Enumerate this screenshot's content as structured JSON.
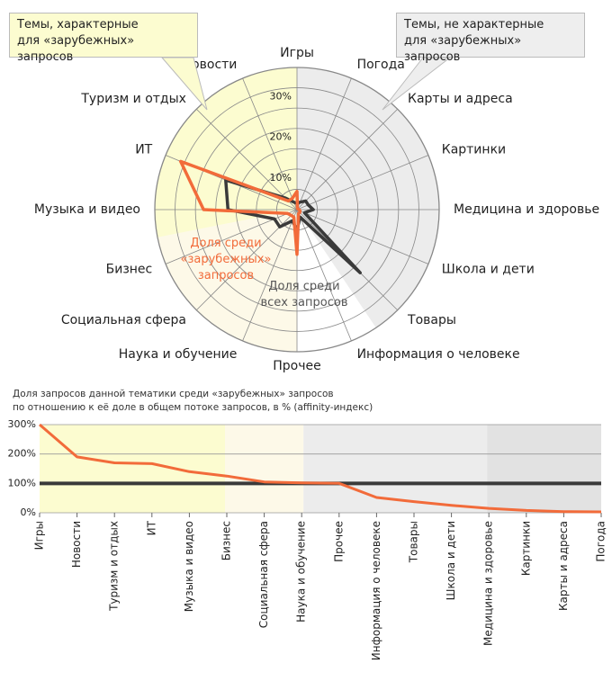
{
  "chart_data": [
    {
      "type": "radar",
      "categories": [
        "Игры",
        "Погода",
        "Карты и адреса",
        "Картинки",
        "Медицина и здоровье",
        "Школа и дети",
        "Товары",
        "Информация о человеке",
        "Прочее",
        "Наука и обучение",
        "Социальная сфера",
        "Бизнес",
        "Музыка и видео",
        "ИТ",
        "Туризм и отдых",
        "Новости"
      ],
      "series": [
        {
          "name": "Доля среди всех запросов",
          "color": "#3a3a3a",
          "values": [
            1.5,
            2,
            3,
            3,
            4,
            2,
            22,
            2,
            5,
            3,
            6,
            6,
            17,
            19,
            4,
            2
          ]
        },
        {
          "name": "Доля среди «зарубежных» запросов",
          "color": "#f26b3a",
          "values": [
            4.5,
            0.3,
            0.3,
            0.3,
            0.5,
            0.8,
            1,
            1,
            11,
            2,
            2,
            2.5,
            23,
            31,
            3,
            3
          ]
        }
      ],
      "rlim": [
        0,
        35
      ],
      "rticks": [
        {
          "value": 10,
          "label": "10%"
        },
        {
          "value": 20,
          "label": "20%"
        },
        {
          "value": 30,
          "label": "30%"
        }
      ],
      "rgrid": [
        5,
        10,
        15,
        20,
        25,
        30,
        35
      ],
      "annotations": [
        [
          "Темы, характерные",
          "для «зарубежных» запросов"
        ],
        [
          "Темы, не характерные",
          "для «зарубежных» запросов"
        ]
      ]
    },
    {
      "type": "line",
      "title": [
        "Доля запросов данной тематики среди «зарубежных» запросов",
        "по отношению к её доле в общем потоке запросов, в % (affinity-индекс)"
      ],
      "categories": [
        "Игры",
        "Новости",
        "Туризм и отдых",
        "ИТ",
        "Музыка и видео",
        "Бизнес",
        "Социальная сфера",
        "Наука и обучение",
        "Прочее",
        "Информация о человеке",
        "Товары",
        "Школа и дети",
        "Медицина и здоровье",
        "Картинки",
        "Карты и адреса",
        "Погода"
      ],
      "values": [
        300,
        190,
        170,
        167,
        140,
        125,
        105,
        102,
        100,
        52,
        38,
        25,
        15,
        8,
        4,
        3
      ],
      "color": "#f26b3a",
      "reference": 100,
      "ylim": [
        0,
        300
      ],
      "yticks": [
        {
          "value": 0,
          "label": "0%"
        },
        {
          "value": 100,
          "label": "100%"
        },
        {
          "value": 200,
          "label": "200%"
        },
        {
          "value": 300,
          "label": "300%"
        }
      ],
      "grid": true
    }
  ]
}
